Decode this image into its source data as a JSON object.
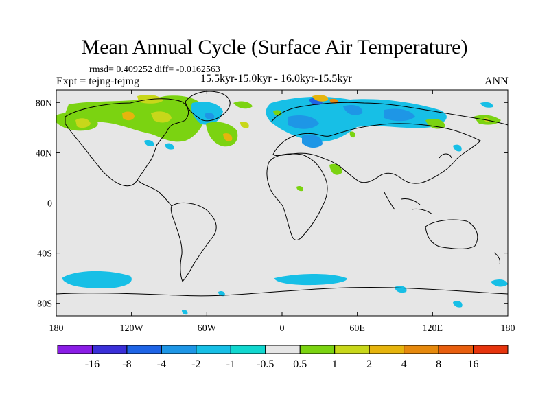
{
  "title": "Mean Annual Cycle (Surface Air Temperature)",
  "stats": "rmsd= 0.409252 diff= -0.0162563",
  "experiment": "Expt = tejng-tejmg",
  "period": "15.5kyr-15.0kyr - 16.0kyr-15.5kyr",
  "season": "ANN",
  "latitude_labels": [
    "80N",
    "40N",
    "0",
    "40S",
    "80S"
  ],
  "longitude_labels": [
    "180",
    "120W",
    "60W",
    "0",
    "60E",
    "120E",
    "180"
  ],
  "colorbar": {
    "labels": [
      "-16",
      "-8",
      "-4",
      "-2",
      "-1",
      "-0.5",
      "0.5",
      "1",
      "2",
      "4",
      "8",
      "16"
    ],
    "colors": [
      "#8a1de6",
      "#3a2fd8",
      "#1e64e6",
      "#1e96e6",
      "#17bfe6",
      "#11d7cf",
      "#e6e6e6",
      "#7bd311",
      "#c8d71a",
      "#e6b40d",
      "#e6890d",
      "#e85e0e",
      "#e6340d"
    ]
  },
  "colors": {
    "background": "#e6e6e6",
    "coastline": "#000000"
  }
}
